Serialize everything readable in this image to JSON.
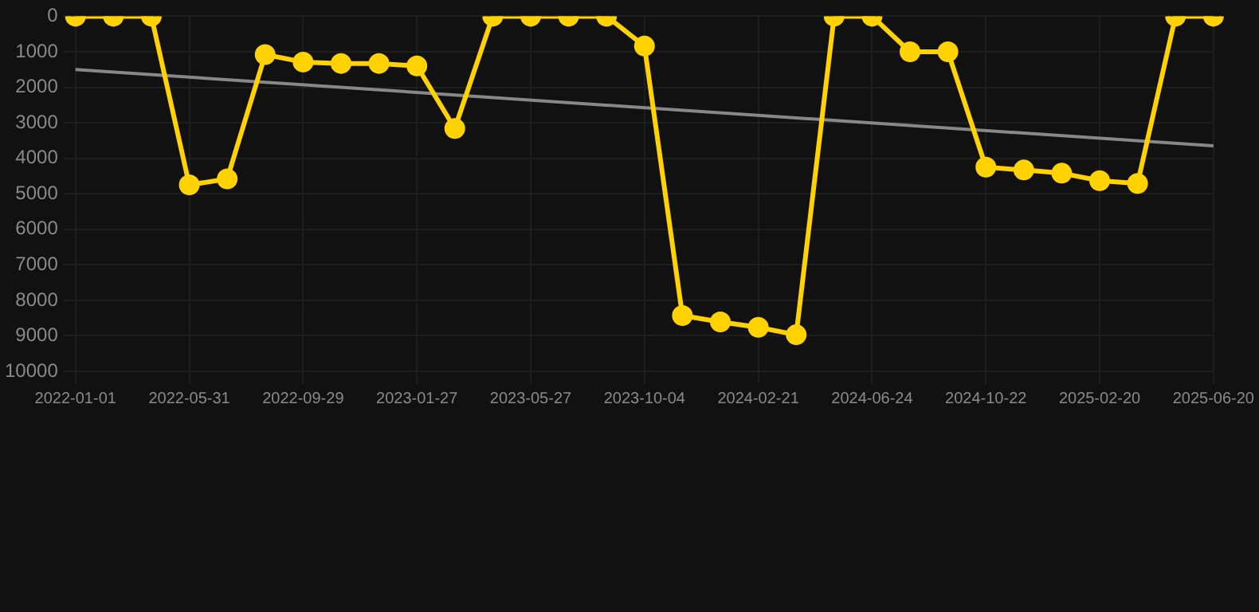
{
  "chart_data": {
    "type": "line",
    "categories": [
      "2022-01-01",
      null,
      null,
      "2022-05-31",
      null,
      null,
      "2022-09-29",
      null,
      null,
      "2023-01-27",
      null,
      null,
      "2023-05-27",
      null,
      null,
      "2023-10-04",
      null,
      null,
      "2024-02-21",
      null,
      null,
      "2024-06-24",
      null,
      null,
      "2024-10-22",
      null,
      null,
      "2025-02-20",
      null,
      null,
      "2025-06-20"
    ],
    "series": [
      {
        "color": "#ffd200",
        "marker": "circle",
        "values": [
          0,
          0,
          0,
          4750,
          4580,
          1080,
          1290,
          1330,
          1330,
          1400,
          3160,
          0,
          0,
          0,
          0,
          840,
          8430,
          8610,
          8760,
          8970,
          0,
          0,
          1000,
          1000,
          4250,
          4330,
          4420,
          4630,
          4710,
          0,
          0
        ]
      },
      {
        "color": "#888888",
        "marker": "none",
        "values": [
          1500,
          null,
          null,
          null,
          null,
          null,
          null,
          null,
          null,
          null,
          null,
          null,
          null,
          null,
          null,
          null,
          null,
          null,
          null,
          null,
          null,
          null,
          null,
          null,
          null,
          null,
          null,
          null,
          null,
          null,
          3650
        ]
      }
    ],
    "ylim": [
      10000,
      0
    ],
    "yticks": [
      0,
      1000,
      2000,
      3000,
      4000,
      5000,
      6000,
      7000,
      8000,
      9000,
      10000
    ],
    "grid": true,
    "line_style": "solid"
  }
}
